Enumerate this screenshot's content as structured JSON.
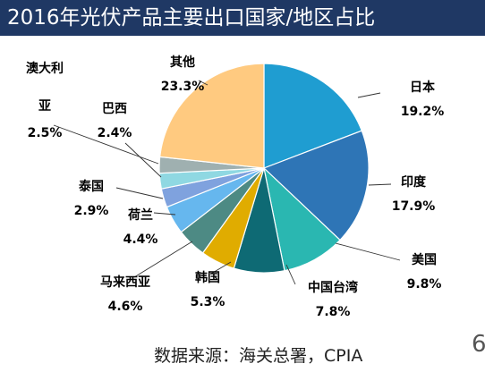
{
  "title": "2016年光伏产品主要出口国家/地区占比",
  "source": "数据来源：海关总署，CPIA",
  "corner_mark": "6",
  "chart_data": {
    "type": "pie",
    "title": "2016年光伏产品主要出口国家/地区占比",
    "unit": "%",
    "slices": [
      {
        "label": "日本",
        "value": 19.2,
        "value_text": "19.2%",
        "color": "#1f9dd1"
      },
      {
        "label": "印度",
        "value": 17.9,
        "value_text": "17.9%",
        "color": "#2e75b6"
      },
      {
        "label": "美国",
        "value": 9.8,
        "value_text": "9.8%",
        "color": "#2ab7b1"
      },
      {
        "label": "中国台湾",
        "value": 7.8,
        "value_text": "7.8%",
        "color": "#0e6a74"
      },
      {
        "label": "韩国",
        "value": 5.3,
        "value_text": "5.3%",
        "color": "#e0ac00"
      },
      {
        "label": "马来西亚",
        "value": 4.6,
        "value_text": "4.6%",
        "color": "#4d8a84"
      },
      {
        "label": "荷兰",
        "value": 4.4,
        "value_text": "4.4%",
        "color": "#66b7ee"
      },
      {
        "label": "泰国",
        "value": 2.9,
        "value_text": "2.9%",
        "color": "#7fa2de"
      },
      {
        "label": "巴西",
        "value": 2.4,
        "value_text": "2.4%",
        "color": "#8fd8e2"
      },
      {
        "label": "澳大利亚",
        "value": 2.5,
        "value_text": "2.5%",
        "color": "#9fb0b0"
      },
      {
        "label": "其他",
        "value": 23.3,
        "value_text": "23.3%",
        "color": "#ffca80"
      }
    ]
  }
}
